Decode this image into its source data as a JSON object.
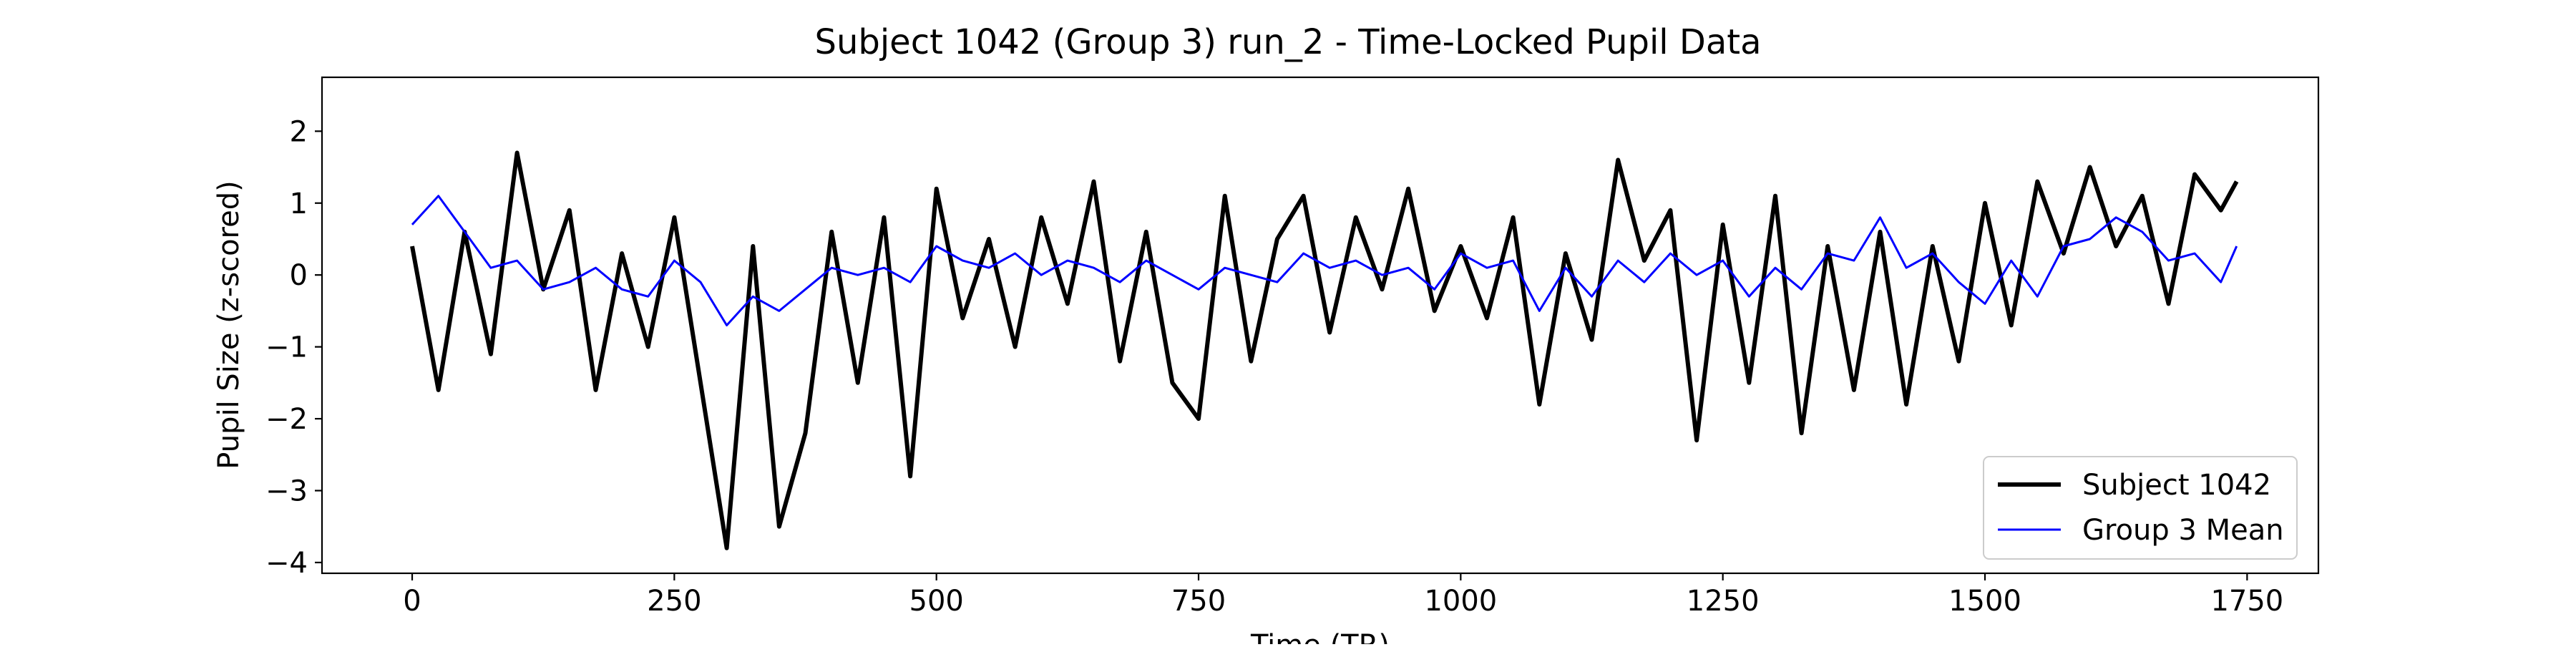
{
  "chart_data": {
    "type": "line",
    "title": "Subject 1042 (Group 3) run_2 - Time-Locked Pupil Data",
    "xlabel": "Time (TR)",
    "ylabel": "Pupil Size (z-scored)",
    "xlim": [
      -86,
      1818
    ],
    "ylim": [
      -4.15,
      2.75
    ],
    "xticks": [
      0,
      250,
      500,
      750,
      1000,
      1250,
      1500,
      1750
    ],
    "xtick_labels": [
      "0",
      "250",
      "500",
      "750",
      "1000",
      "1250",
      "1500",
      "1750"
    ],
    "yticks": [
      2,
      1,
      0,
      -1,
      -2,
      -3,
      -4
    ],
    "ytick_labels": [
      "2",
      "1",
      "0",
      "−1",
      "−2",
      "−3",
      "−4"
    ],
    "grid": false,
    "legend_position": "lower-right",
    "series": [
      {
        "name": "Subject 1042",
        "color": "#000000",
        "x": [
          0,
          25,
          50,
          75,
          100,
          125,
          150,
          175,
          200,
          225,
          250,
          275,
          300,
          325,
          350,
          375,
          400,
          425,
          450,
          475,
          500,
          525,
          550,
          575,
          600,
          625,
          650,
          675,
          700,
          725,
          750,
          775,
          800,
          825,
          850,
          875,
          900,
          925,
          950,
          975,
          1000,
          1025,
          1050,
          1075,
          1100,
          1125,
          1150,
          1175,
          1200,
          1225,
          1250,
          1275,
          1300,
          1325,
          1350,
          1375,
          1400,
          1425,
          1450,
          1475,
          1500,
          1525,
          1550,
          1575,
          1600,
          1625,
          1650,
          1675,
          1700,
          1725,
          1740
        ],
        "y": [
          0.4,
          -1.6,
          0.6,
          -1.1,
          1.7,
          -0.2,
          0.9,
          -1.6,
          0.3,
          -1.0,
          0.8,
          -1.5,
          -3.8,
          0.4,
          -3.5,
          -2.2,
          0.6,
          -1.5,
          0.8,
          -2.8,
          1.2,
          -0.6,
          0.5,
          -1.0,
          0.8,
          -0.4,
          1.3,
          -1.2,
          0.6,
          -1.5,
          -2.0,
          1.1,
          -1.2,
          0.5,
          1.1,
          -0.8,
          0.8,
          -0.2,
          1.2,
          -0.5,
          0.4,
          -0.6,
          0.8,
          -1.8,
          0.3,
          -0.9,
          1.6,
          0.2,
          0.9,
          -2.3,
          0.7,
          -1.5,
          1.1,
          -2.2,
          0.4,
          -1.6,
          0.6,
          -1.8,
          0.4,
          -1.2,
          1.0,
          -0.7,
          1.3,
          0.3,
          1.5,
          0.4,
          1.1,
          -0.4,
          1.4,
          0.9,
          1.3
        ]
      },
      {
        "name": "Group 3 Mean",
        "color": "#0000ff",
        "x": [
          0,
          25,
          50,
          75,
          100,
          125,
          150,
          175,
          200,
          225,
          250,
          275,
          300,
          325,
          350,
          375,
          400,
          425,
          450,
          475,
          500,
          525,
          550,
          575,
          600,
          625,
          650,
          675,
          700,
          725,
          750,
          775,
          800,
          825,
          850,
          875,
          900,
          925,
          950,
          975,
          1000,
          1025,
          1050,
          1075,
          1100,
          1125,
          1150,
          1175,
          1200,
          1225,
          1250,
          1275,
          1300,
          1325,
          1350,
          1375,
          1400,
          1425,
          1450,
          1475,
          1500,
          1525,
          1550,
          1575,
          1600,
          1625,
          1650,
          1675,
          1700,
          1725,
          1740
        ],
        "y": [
          0.7,
          1.1,
          0.6,
          0.1,
          0.2,
          -0.2,
          -0.1,
          0.1,
          -0.2,
          -0.3,
          0.2,
          -0.1,
          -0.7,
          -0.3,
          -0.5,
          -0.2,
          0.1,
          0.0,
          0.1,
          -0.1,
          0.4,
          0.2,
          0.1,
          0.3,
          0.0,
          0.2,
          0.1,
          -0.1,
          0.2,
          0.0,
          -0.2,
          0.1,
          0.0,
          -0.1,
          0.3,
          0.1,
          0.2,
          0.0,
          0.1,
          -0.2,
          0.3,
          0.1,
          0.2,
          -0.5,
          0.1,
          -0.3,
          0.2,
          -0.1,
          0.3,
          0.0,
          0.2,
          -0.3,
          0.1,
          -0.2,
          0.3,
          0.2,
          0.8,
          0.1,
          0.3,
          -0.1,
          -0.4,
          0.2,
          -0.3,
          0.4,
          0.5,
          0.8,
          0.6,
          0.2,
          0.3,
          -0.1,
          0.4
        ]
      }
    ]
  }
}
